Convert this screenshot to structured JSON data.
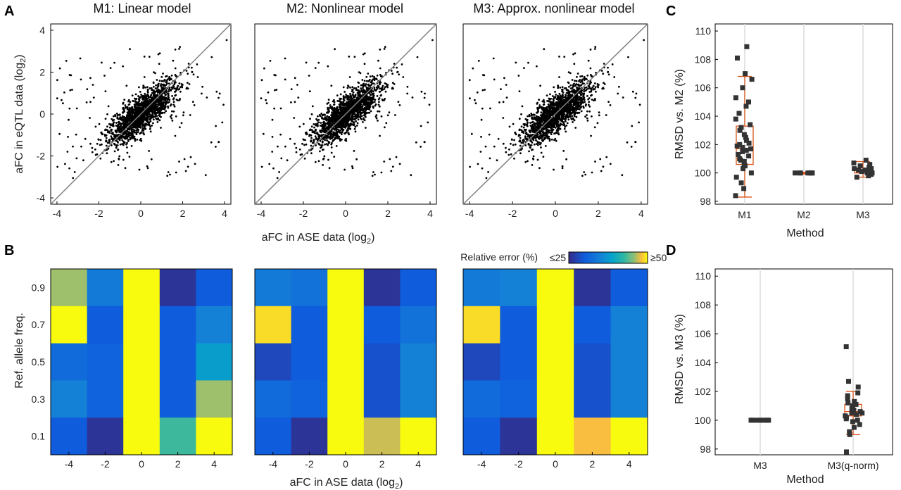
{
  "panel_letters": {
    "a": "A",
    "b": "B",
    "c": "C",
    "d": "D"
  },
  "chart_data": [
    {
      "id": "A",
      "type": "scatter",
      "panels": [
        {
          "title": "M1: Linear model"
        },
        {
          "title": "M2: Nonlinear model"
        },
        {
          "title": "M3: Approx. nonlinear model"
        }
      ],
      "xlabel": "aFC in ASE data (log",
      "xlabel_sub": "2",
      "xlabel_end": ")",
      "ylabel": "aFC in eQTL data (log",
      "ylabel_sub": "2",
      "ylabel_end": ")",
      "xlim": [
        -4.3,
        4.3
      ],
      "ylim": [
        -4.3,
        4.3
      ],
      "xticks": [
        -4,
        -2,
        0,
        2,
        4
      ],
      "yticks": [
        -4,
        -2,
        0,
        2,
        4
      ],
      "tick_labels": [
        "-4",
        "-2",
        "0",
        "2",
        "4"
      ],
      "reference_line": "y = x",
      "point_color": "#000000",
      "line_color": "#808080"
    },
    {
      "id": "B",
      "type": "heatmap",
      "xlabel": "aFC in ASE data (log",
      "xlabel_sub": "2",
      "xlabel_end": ")",
      "ylabel": "Ref. allele freq.",
      "x_categories": [
        "-4",
        "-2",
        "0",
        "2",
        "4"
      ],
      "y_categories": [
        "0.9",
        "0.7",
        "0.5",
        "0.3",
        "0.1"
      ],
      "colorbar": {
        "label": "Relative error (%)",
        "min_label": "≤25",
        "max_label": "≥50",
        "min": 25,
        "max": 50
      },
      "panels": [
        {
          "values": [
            [
              46,
              34,
              50,
              26,
              30
            ],
            [
              50,
              30,
              50,
              30,
              35
            ],
            [
              32,
              31,
              50,
              30,
              38
            ],
            [
              35,
              31,
              50,
              30,
              46
            ],
            [
              30,
              26,
              50,
              43,
              50
            ]
          ]
        },
        {
          "values": [
            [
              34,
              33,
              50,
              26,
              30
            ],
            [
              49,
              30,
              50,
              30,
              33
            ],
            [
              28,
              30,
              50,
              29,
              35
            ],
            [
              32,
              31,
              50,
              29,
              35
            ],
            [
              30,
              26,
              50,
              47,
              50
            ]
          ]
        },
        {
          "values": [
            [
              34,
              35,
              50,
              26,
              30
            ],
            [
              49,
              30,
              50,
              30,
              35
            ],
            [
              28,
              30,
              50,
              29,
              35
            ],
            [
              32,
              31,
              50,
              29,
              35
            ],
            [
              30,
              26,
              50,
              48,
              50
            ]
          ]
        }
      ]
    },
    {
      "id": "C",
      "type": "box",
      "ylabel": "RMSD vs. M2 (%)",
      "xlabel": "Method",
      "ylim": [
        97.8,
        110.5
      ],
      "yticks": [
        98,
        100,
        102,
        104,
        106,
        108,
        110
      ],
      "categories": [
        "M1",
        "M2",
        "M3"
      ],
      "box_color": "#d9541a",
      "boxes": [
        {
          "min": 98.3,
          "q1": 100.6,
          "median": 101.7,
          "q3": 103.3,
          "max": 106.8,
          "points": [
            98.4,
            98.9,
            99.3,
            99.7,
            100.0,
            100.3,
            100.5,
            100.6,
            100.8,
            100.9,
            101.0,
            101.2,
            101.3,
            101.5,
            101.6,
            101.7,
            101.8,
            101.9,
            102.0,
            102.1,
            102.3,
            102.5,
            102.7,
            103.0,
            103.2,
            103.4,
            103.8,
            104.2,
            104.7,
            105.0,
            105.3,
            106.0,
            106.6,
            107.0,
            108.1,
            108.9
          ]
        },
        {
          "min": 99.95,
          "q1": 99.98,
          "median": 100.0,
          "q3": 100.02,
          "max": 100.05,
          "points": [
            100.0,
            100.0,
            100.0,
            100.0,
            100.0,
            100.0,
            100.0,
            100.0
          ]
        },
        {
          "min": 99.7,
          "q1": 100.0,
          "median": 100.2,
          "q3": 100.35,
          "max": 100.8,
          "points": [
            99.7,
            99.8,
            99.9,
            100.0,
            100.0,
            100.1,
            100.1,
            100.2,
            100.2,
            100.3,
            100.3,
            100.4,
            100.5,
            100.6,
            100.7,
            100.9
          ]
        }
      ]
    },
    {
      "id": "D",
      "type": "box",
      "ylabel": "RMSD vs. M3 (%)",
      "xlabel": "Method",
      "ylim": [
        97.6,
        110.5
      ],
      "yticks": [
        98,
        100,
        102,
        104,
        106,
        108,
        110
      ],
      "categories": [
        "M3",
        "M3(q-norm)"
      ],
      "box_color": "#d9541a",
      "boxes": [
        {
          "min": 99.97,
          "q1": 99.99,
          "median": 100.0,
          "q3": 100.01,
          "max": 100.03,
          "points": [
            100.0,
            100.0,
            100.0,
            100.0,
            100.0,
            100.0,
            100.0,
            100.0,
            100.0,
            100.0
          ]
        },
        {
          "min": 99.0,
          "q1": 100.3,
          "median": 100.6,
          "q3": 101.1,
          "max": 102.0,
          "points": [
            97.8,
            99.0,
            99.2,
            99.5,
            99.7,
            99.9,
            100.0,
            100.1,
            100.2,
            100.3,
            100.4,
            100.5,
            100.5,
            100.6,
            100.7,
            100.8,
            100.9,
            101.0,
            101.1,
            101.2,
            101.3,
            101.5,
            101.7,
            101.9,
            102.3,
            102.7,
            105.1
          ]
        }
      ]
    }
  ]
}
